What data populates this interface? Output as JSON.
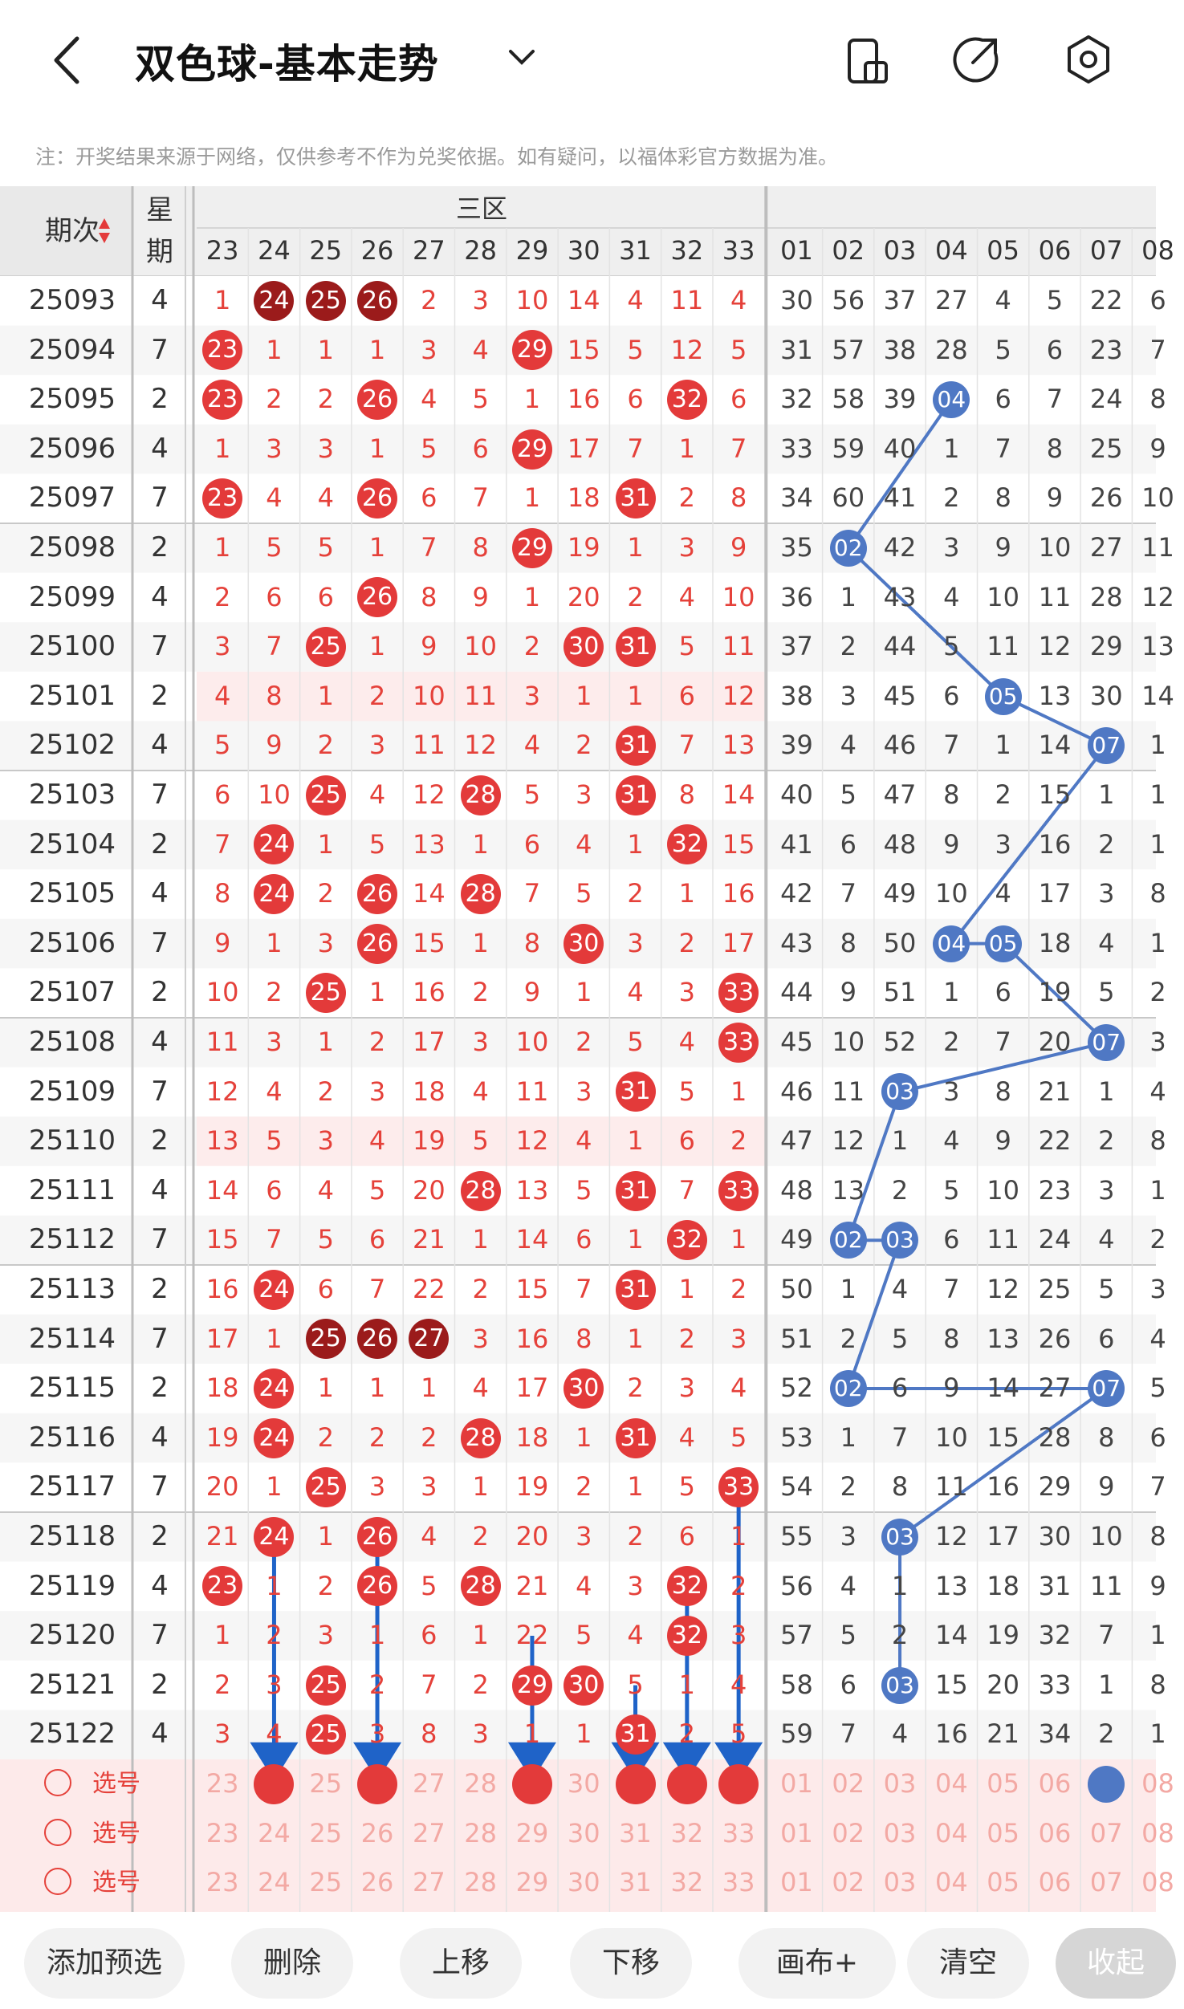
{
  "header": {
    "title": "双色球-基本走势",
    "notice": "注：开奖结果来源于网络，仅供参考不作为兑奖依据。如有疑问，以福体彩官方数据为准。"
  },
  "table": {
    "issue_header": "期次",
    "week_header": "星\n期",
    "week_header_top": "星",
    "week_header_bottom": "期",
    "zone_header": "三区",
    "red_columns": [
      "23",
      "24",
      "25",
      "26",
      "27",
      "28",
      "29",
      "30",
      "31",
      "32",
      "33"
    ],
    "blue_columns": [
      "01",
      "02",
      "03",
      "04",
      "05",
      "06",
      "07",
      "08"
    ],
    "rows": [
      {
        "issue": "25093",
        "week": "4",
        "red": [
          1,
          24,
          25,
          26,
          2,
          3,
          10,
          14,
          4,
          11,
          4
        ],
        "blue": [
          30,
          56,
          37,
          27,
          4,
          5,
          22,
          6
        ]
      },
      {
        "issue": "25094",
        "week": "7",
        "red": [
          23,
          1,
          1,
          1,
          3,
          4,
          29,
          15,
          5,
          12,
          5
        ],
        "blue": [
          31,
          57,
          38,
          28,
          5,
          6,
          23,
          7
        ]
      },
      {
        "issue": "25095",
        "week": "2",
        "red": [
          23,
          2,
          2,
          26,
          4,
          5,
          1,
          16,
          6,
          32,
          6
        ],
        "blue": [
          32,
          58,
          39,
          4,
          6,
          7,
          24,
          8
        ]
      },
      {
        "issue": "25096",
        "week": "4",
        "red": [
          1,
          3,
          3,
          1,
          5,
          6,
          29,
          17,
          7,
          1,
          7
        ],
        "blue": [
          33,
          59,
          40,
          1,
          7,
          8,
          25,
          9
        ]
      },
      {
        "issue": "25097",
        "week": "7",
        "red": [
          23,
          4,
          4,
          26,
          6,
          7,
          1,
          18,
          31,
          2,
          8
        ],
        "blue": [
          34,
          60,
          41,
          2,
          8,
          9,
          26,
          10
        ]
      },
      {
        "issue": "25098",
        "week": "2",
        "red": [
          1,
          5,
          5,
          1,
          7,
          8,
          29,
          19,
          1,
          3,
          9
        ],
        "blue": [
          35,
          2,
          42,
          3,
          9,
          10,
          27,
          11
        ]
      },
      {
        "issue": "25099",
        "week": "4",
        "red": [
          2,
          6,
          6,
          26,
          8,
          9,
          1,
          20,
          2,
          4,
          10
        ],
        "blue": [
          36,
          1,
          43,
          4,
          10,
          11,
          28,
          12
        ]
      },
      {
        "issue": "25100",
        "week": "7",
        "red": [
          3,
          7,
          25,
          1,
          9,
          10,
          2,
          30,
          31,
          5,
          11
        ],
        "blue": [
          37,
          2,
          44,
          5,
          11,
          12,
          29,
          13
        ]
      },
      {
        "issue": "25101",
        "week": "2",
        "red": [
          4,
          8,
          1,
          2,
          10,
          11,
          3,
          1,
          1,
          6,
          12
        ],
        "blue": [
          38,
          3,
          45,
          6,
          5,
          13,
          30,
          14
        ]
      },
      {
        "issue": "25102",
        "week": "4",
        "red": [
          5,
          9,
          2,
          3,
          11,
          12,
          4,
          2,
          31,
          7,
          13
        ],
        "blue": [
          39,
          4,
          46,
          7,
          1,
          14,
          7,
          1
        ]
      },
      {
        "issue": "25103",
        "week": "7",
        "red": [
          6,
          10,
          25,
          4,
          12,
          28,
          5,
          3,
          31,
          8,
          14
        ],
        "blue": [
          40,
          5,
          47,
          8,
          2,
          15,
          1,
          1
        ]
      },
      {
        "issue": "25104",
        "week": "2",
        "red": [
          7,
          24,
          1,
          5,
          13,
          1,
          6,
          4,
          1,
          32,
          15
        ],
        "blue": [
          41,
          6,
          48,
          9,
          3,
          16,
          2,
          1
        ]
      },
      {
        "issue": "25105",
        "week": "4",
        "red": [
          8,
          24,
          2,
          26,
          14,
          28,
          7,
          5,
          2,
          1,
          16
        ],
        "blue": [
          42,
          7,
          49,
          10,
          4,
          17,
          3,
          8
        ]
      },
      {
        "issue": "25106",
        "week": "7",
        "red": [
          9,
          1,
          3,
          26,
          15,
          1,
          8,
          30,
          3,
          2,
          17
        ],
        "blue": [
          43,
          8,
          50,
          4,
          5,
          18,
          4,
          1
        ]
      },
      {
        "issue": "25107",
        "week": "2",
        "red": [
          10,
          2,
          25,
          1,
          16,
          2,
          9,
          1,
          4,
          3,
          33
        ],
        "blue": [
          44,
          9,
          51,
          1,
          6,
          19,
          5,
          2
        ]
      },
      {
        "issue": "25108",
        "week": "4",
        "red": [
          11,
          3,
          1,
          2,
          17,
          3,
          10,
          2,
          5,
          4,
          33
        ],
        "blue": [
          45,
          10,
          52,
          2,
          7,
          20,
          7,
          3
        ]
      },
      {
        "issue": "25109",
        "week": "7",
        "red": [
          12,
          4,
          2,
          3,
          18,
          4,
          11,
          3,
          31,
          5,
          1
        ],
        "blue": [
          46,
          11,
          3,
          3,
          8,
          21,
          1,
          4
        ]
      },
      {
        "issue": "25110",
        "week": "2",
        "red": [
          13,
          5,
          3,
          4,
          19,
          5,
          12,
          4,
          1,
          6,
          2
        ],
        "blue": [
          47,
          12,
          1,
          4,
          9,
          22,
          2,
          8
        ]
      },
      {
        "issue": "25111",
        "week": "4",
        "red": [
          14,
          6,
          4,
          5,
          20,
          28,
          13,
          5,
          31,
          7,
          33
        ],
        "blue": [
          48,
          13,
          2,
          5,
          10,
          23,
          3,
          1
        ]
      },
      {
        "issue": "25112",
        "week": "7",
        "red": [
          15,
          7,
          5,
          6,
          21,
          1,
          14,
          6,
          1,
          32,
          1
        ],
        "blue": [
          49,
          2,
          3,
          6,
          11,
          24,
          4,
          2
        ]
      },
      {
        "issue": "25113",
        "week": "2",
        "red": [
          16,
          24,
          6,
          7,
          22,
          2,
          15,
          7,
          31,
          1,
          2
        ],
        "blue": [
          50,
          1,
          4,
          7,
          12,
          25,
          5,
          3
        ]
      },
      {
        "issue": "25114",
        "week": "7",
        "red": [
          17,
          1,
          25,
          26,
          27,
          3,
          16,
          8,
          1,
          2,
          3
        ],
        "blue": [
          51,
          2,
          5,
          8,
          13,
          26,
          6,
          4
        ]
      },
      {
        "issue": "25115",
        "week": "2",
        "red": [
          18,
          24,
          1,
          1,
          1,
          4,
          17,
          30,
          2,
          3,
          4
        ],
        "blue": [
          52,
          2,
          6,
          9,
          14,
          27,
          7,
          5
        ]
      },
      {
        "issue": "25116",
        "week": "4",
        "red": [
          19,
          24,
          2,
          2,
          2,
          28,
          18,
          1,
          31,
          4,
          5
        ],
        "blue": [
          53,
          1,
          7,
          10,
          15,
          28,
          8,
          6
        ]
      },
      {
        "issue": "25117",
        "week": "7",
        "red": [
          20,
          1,
          25,
          3,
          3,
          1,
          19,
          2,
          1,
          5,
          33
        ],
        "blue": [
          54,
          2,
          8,
          11,
          16,
          29,
          9,
          7
        ]
      },
      {
        "issue": "25118",
        "week": "2",
        "red": [
          21,
          24,
          1,
          26,
          4,
          2,
          20,
          3,
          2,
          6,
          1
        ],
        "blue": [
          55,
          3,
          3,
          12,
          17,
          30,
          10,
          8
        ]
      },
      {
        "issue": "25119",
        "week": "4",
        "red": [
          23,
          1,
          2,
          26,
          5,
          28,
          21,
          4,
          3,
          32,
          2
        ],
        "blue": [
          56,
          4,
          1,
          13,
          18,
          31,
          11,
          9
        ]
      },
      {
        "issue": "25120",
        "week": "7",
        "red": [
          1,
          2,
          3,
          1,
          6,
          1,
          22,
          5,
          4,
          32,
          3
        ],
        "blue": [
          57,
          5,
          2,
          14,
          19,
          32,
          7,
          1
        ]
      },
      {
        "issue": "25121",
        "week": "2",
        "red": [
          2,
          3,
          25,
          2,
          7,
          2,
          29,
          30,
          5,
          1,
          4
        ],
        "blue": [
          58,
          6,
          3,
          15,
          20,
          33,
          1,
          8
        ]
      },
      {
        "issue": "25122",
        "week": "4",
        "red": [
          3,
          4,
          25,
          3,
          8,
          3,
          1,
          1,
          31,
          2,
          5
        ],
        "blue": [
          59,
          7,
          4,
          16,
          21,
          34,
          2,
          1
        ]
      }
    ],
    "pick_rows": [
      {
        "label": "选号"
      },
      {
        "label": "选号"
      },
      {
        "label": "选号"
      }
    ]
  },
  "footer": {
    "buttons": [
      "添加预选",
      "删除",
      "上移",
      "下移",
      "画布+",
      "清空",
      "收起"
    ]
  },
  "colors": {
    "red": "#e33a3a",
    "dark_red": "#9b1b1b",
    "blue": "#4f78c4",
    "arrow": "#1f63c8"
  }
}
